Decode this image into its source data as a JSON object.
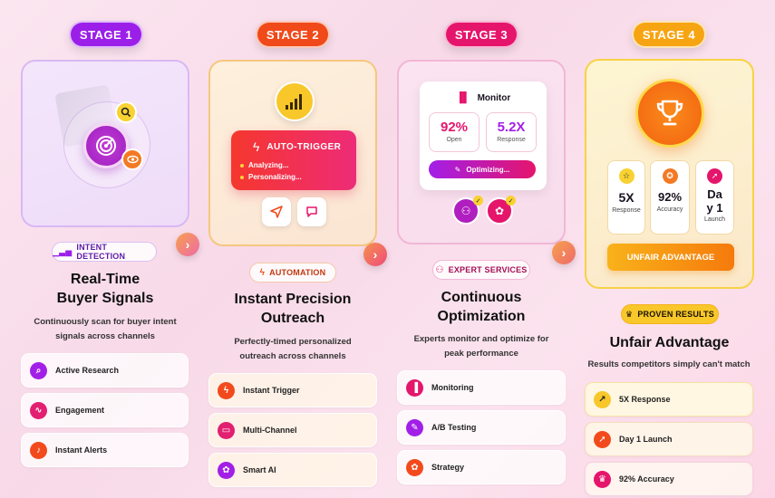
{
  "stages": [
    {
      "label": "STAGE 1",
      "color": "#9b1fe8"
    },
    {
      "label": "STAGE 2",
      "color": "#f04a1a"
    },
    {
      "label": "STAGE 3",
      "color": "#e5156c"
    },
    {
      "label": "STAGE 4",
      "color": "#f7a412"
    }
  ],
  "col1": {
    "tag": "INTENT DETECTION",
    "title_line1": "Real-Time",
    "title_line2": "Buyer Signals",
    "desc_line1": "Continuously scan for buyer intent",
    "desc_line2": "signals across channels",
    "items": [
      "Active Research",
      "Engagement",
      "Instant Alerts"
    ]
  },
  "col2": {
    "card_title": "AUTO-TRIGGER",
    "card_line1": "Analyzing...",
    "card_line2": "Personalizing...",
    "tag": "AUTOMATION",
    "title_line1": "Instant Precision",
    "title_line2": "Outreach",
    "desc_line1": "Perfectly-timed personalized",
    "desc_line2": "outreach across channels",
    "items": [
      "Instant Trigger",
      "Multi-Channel",
      "Smart AI"
    ]
  },
  "col3": {
    "card_title": "Monitor",
    "stat1_value": "92%",
    "stat1_label": "Open",
    "stat2_value": "5.2X",
    "stat2_label": "Response",
    "optimizing": "Optimizing...",
    "tag": "EXPERT SERVICES",
    "title_line1": "Continuous",
    "title_line2": "Optimization",
    "desc_line1": "Experts monitor and optimize for",
    "desc_line2": "peak performance",
    "items": [
      "Monitoring",
      "A/B Testing",
      "Strategy"
    ]
  },
  "col4": {
    "mini1_value": "5X",
    "mini1_label": "Response",
    "mini2_value": "92%",
    "mini2_label": "Accuracy",
    "mini3_value_line1": "Da",
    "mini3_value_line2": "y 1",
    "mini3_label": "Launch",
    "cta": "UNFAIR ADVANTAGE",
    "tag": "PROVEN RESULTS",
    "title": "Unfair Advantage",
    "desc": "Results competitors simply can't match",
    "items": [
      "5X Response",
      "Day 1 Launch",
      "92% Accuracy"
    ]
  },
  "arrow_glyph": "›"
}
